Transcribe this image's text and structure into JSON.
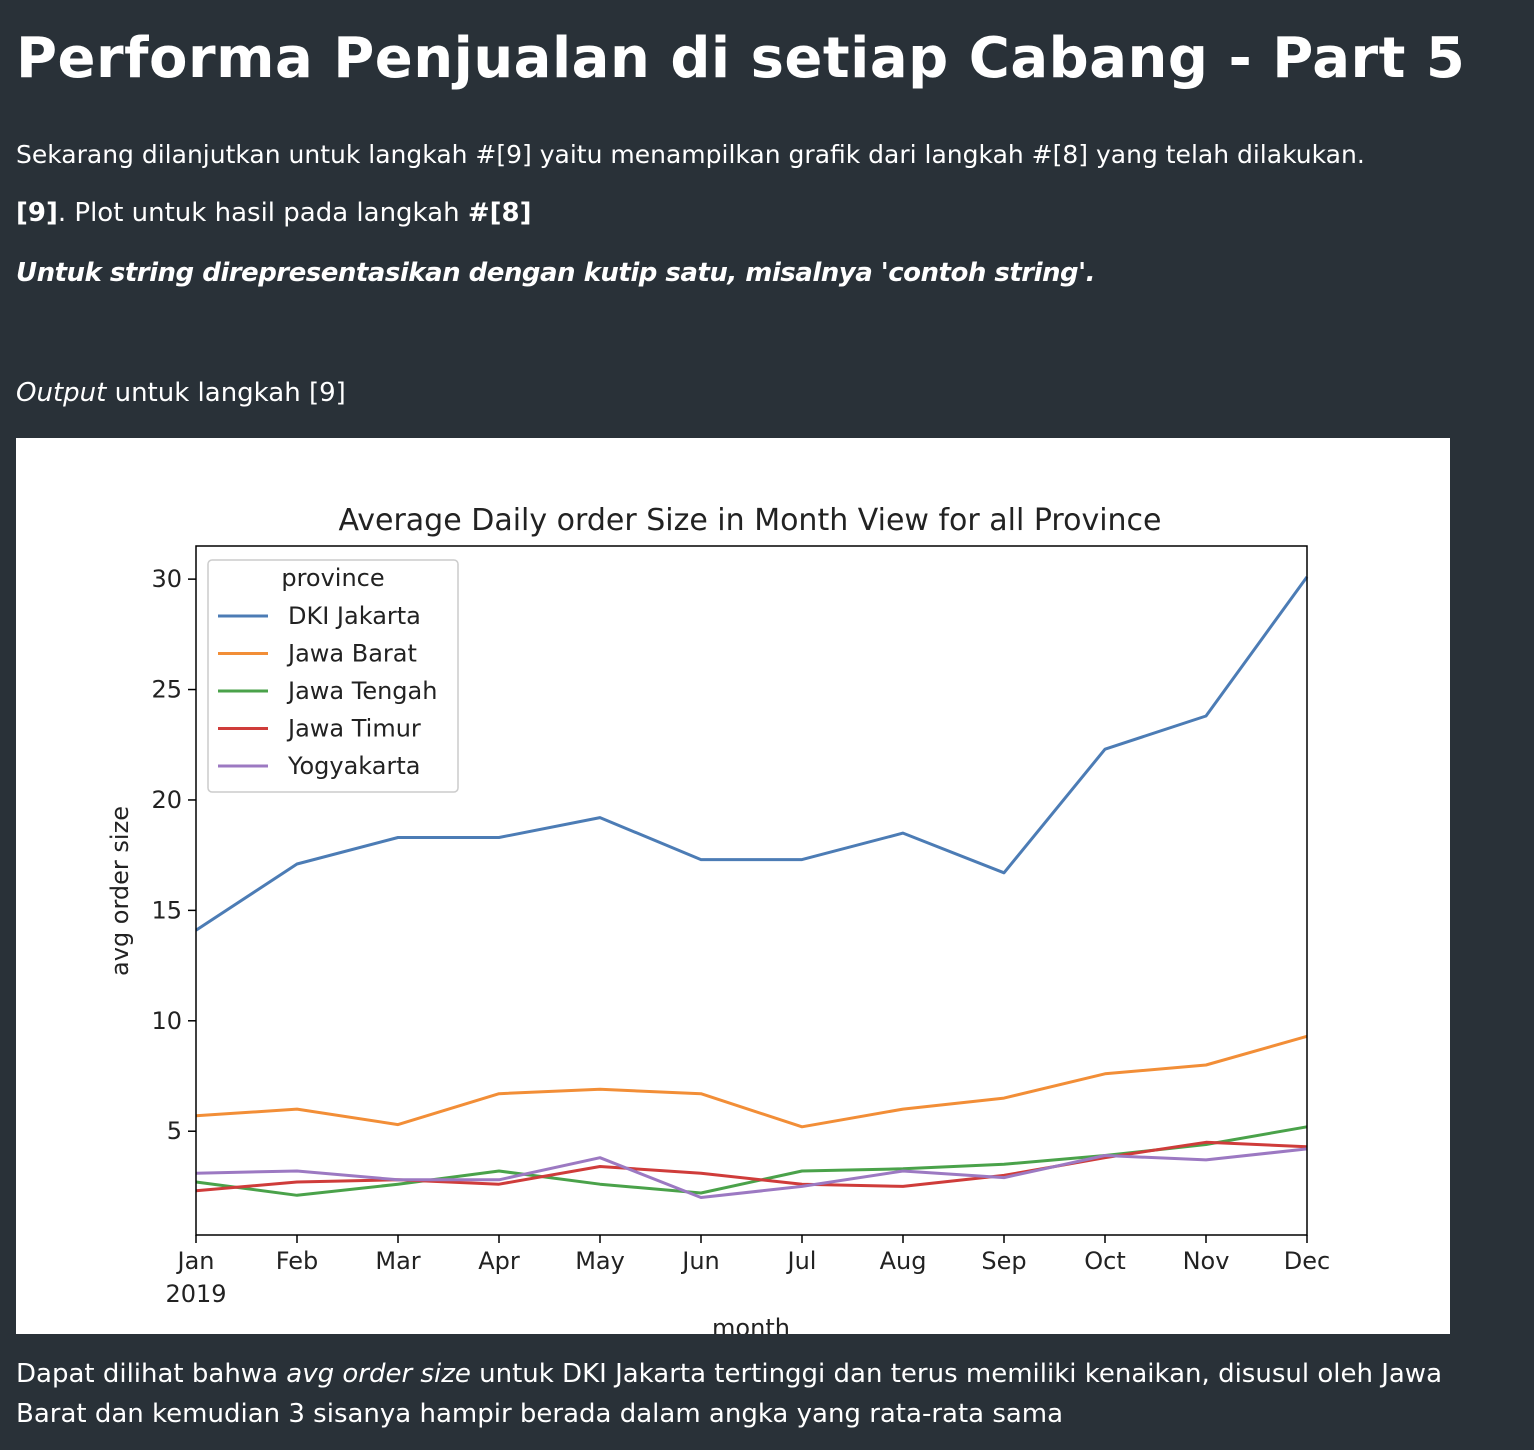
{
  "header": {
    "title": "Performa Penjualan di setiap Cabang - Part 5"
  },
  "intro": {
    "text": "Sekarang dilanjutkan untuk langkah #[9] yaitu menampilkan grafik dari langkah #[8] yang telah dilakukan.",
    "step_num": "[9]",
    "step_text": ". Plot untuk hasil pada langkah ",
    "step_ref": "#[8]",
    "note": "Untuk string direpresentasikan dengan kutip satu, misalnya 'contoh string'.",
    "output_em": "Output",
    "output_text": " untuk langkah [9]"
  },
  "chart_data": {
    "type": "line",
    "title": "Average Daily order Size in Month View for all Province",
    "xlabel": "month",
    "ylabel": "avg order size",
    "categories": [
      "Jan",
      "Feb",
      "Mar",
      "Apr",
      "May",
      "Jun",
      "Jul",
      "Aug",
      "Sep",
      "Oct",
      "Nov",
      "Dec"
    ],
    "year_label": "2019",
    "ylim": [
      0.3,
      31.5
    ],
    "yticks": [
      5,
      10,
      15,
      20,
      25,
      30
    ],
    "grid": false,
    "legend": {
      "title": "province",
      "placement": "upper-left"
    },
    "series": [
      {
        "name": "DKI Jakarta",
        "color": "#4c7cb5",
        "values": [
          14.1,
          17.1,
          18.3,
          18.3,
          19.2,
          17.3,
          17.3,
          18.5,
          16.7,
          22.3,
          23.8,
          30.1
        ]
      },
      {
        "name": "Jawa Barat",
        "color": "#f28e37",
        "values": [
          5.7,
          6.0,
          5.3,
          6.7,
          6.9,
          6.7,
          5.2,
          6.0,
          6.5,
          7.6,
          8.0,
          9.3
        ]
      },
      {
        "name": "Jawa Tengah",
        "color": "#4aa24a",
        "values": [
          2.7,
          2.1,
          2.6,
          3.2,
          2.6,
          2.2,
          3.2,
          3.3,
          3.5,
          3.9,
          4.4,
          5.2
        ]
      },
      {
        "name": "Jawa Timur",
        "color": "#cf3c3a",
        "values": [
          2.3,
          2.7,
          2.8,
          2.6,
          3.4,
          3.1,
          2.6,
          2.5,
          3.0,
          3.8,
          4.5,
          4.3
        ]
      },
      {
        "name": "Yogyakarta",
        "color": "#9c79c2",
        "values": [
          3.1,
          3.2,
          2.8,
          2.8,
          3.8,
          2.0,
          2.5,
          3.2,
          2.9,
          3.9,
          3.7,
          4.2
        ]
      }
    ]
  },
  "conclusion": {
    "pre": "Dapat dilihat bahwa ",
    "em": "avg order size",
    "post": " untuk DKI Jakarta tertinggi dan terus memiliki kenaikan, disusul oleh Jawa Barat dan kemudian 3 sisanya hampir berada dalam angka yang rata-rata sama"
  }
}
